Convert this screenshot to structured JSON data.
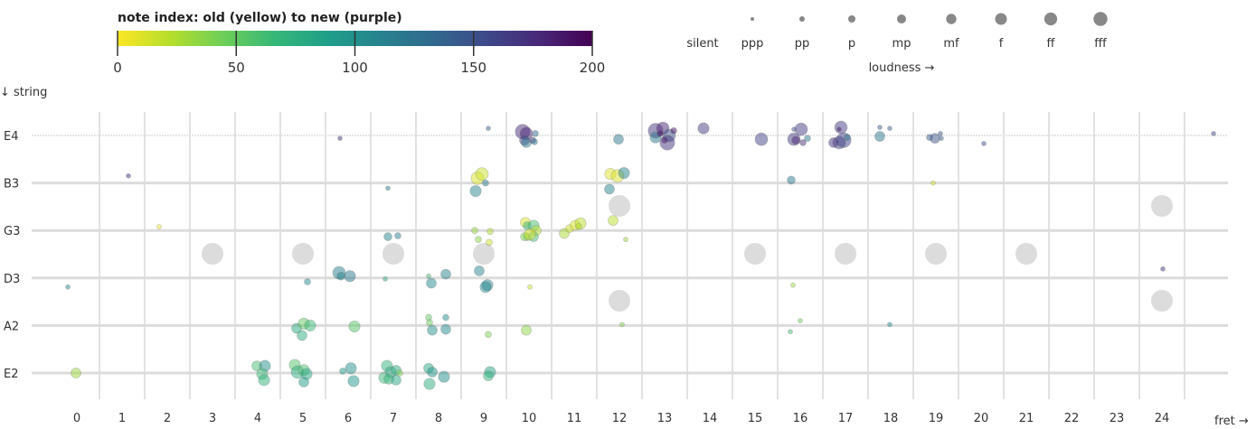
{
  "chart_data": {
    "type": "scatter",
    "colorbar": {
      "title": "note index: old (yellow) to new (purple)",
      "range": [
        0,
        200
      ],
      "ticks": [
        "0",
        "50",
        "100",
        "150",
        "200"
      ],
      "colormap": "viridis",
      "colors": [
        "#fde725",
        "#b5de2b",
        "#6ece58",
        "#35b779",
        "#1f9e89",
        "#26828e",
        "#31688e",
        "#3e4989",
        "#482878",
        "#440154"
      ]
    },
    "loudness_legend": {
      "levels": [
        "silent",
        "ppp",
        "pp",
        "p",
        "mp",
        "mf",
        "f",
        "ff",
        "fff"
      ],
      "title": "loudness →"
    },
    "xlabel": "fret →",
    "ylabel": "↓ string",
    "x_ticks": [
      "0",
      "1",
      "2",
      "3",
      "4",
      "5",
      "6",
      "7",
      "8",
      "9",
      "10",
      "11",
      "12",
      "13",
      "14",
      "15",
      "16",
      "17",
      "18",
      "19",
      "20",
      "21",
      "22",
      "23",
      "24"
    ],
    "strings": [
      "E4",
      "B3",
      "G3",
      "D3",
      "A2",
      "E2"
    ],
    "inlay_frets_single": [
      3,
      5,
      7,
      9,
      15,
      17,
      19,
      21
    ],
    "inlay_frets_double": [
      12,
      24
    ],
    "point_fields": [
      "fret",
      "string",
      "jitter",
      "note_index",
      "loudness"
    ],
    "points": [
      [
        -0.2,
        "D3",
        0.19,
        110,
        "ppp"
      ],
      [
        1.14,
        "B3",
        -0.15,
        175,
        "ppp"
      ],
      [
        1.82,
        "G3",
        -0.08,
        5,
        "ppp"
      ],
      [
        5.82,
        "E4",
        0.06,
        170,
        "ppp"
      ],
      [
        6.88,
        "B3",
        0.11,
        115,
        "ppp"
      ],
      [
        6.88,
        "G3",
        0.13,
        110,
        "p"
      ],
      [
        7.1,
        "G3",
        0.11,
        115,
        "pp"
      ],
      [
        -0.02,
        "E2",
        0,
        30,
        "mp"
      ],
      [
        5.8,
        "D3",
        -0.11,
        115,
        "f"
      ],
      [
        5.84,
        "D3",
        -0.04,
        110,
        "p"
      ],
      [
        6.04,
        "D3",
        -0.04,
        120,
        "mf"
      ],
      [
        5.1,
        "D3",
        0.08,
        105,
        "pp"
      ],
      [
        6.82,
        "D3",
        0.02,
        75,
        "ppp"
      ],
      [
        7.78,
        "D3",
        -0.04,
        60,
        "ppp"
      ],
      [
        7.84,
        "D3",
        0.11,
        105,
        "mp"
      ],
      [
        8.16,
        "D3",
        -0.08,
        110,
        "mp"
      ],
      [
        4.86,
        "A2",
        0.06,
        80,
        "mp"
      ],
      [
        5.02,
        "A2",
        -0.04,
        50,
        "mf"
      ],
      [
        5.16,
        "A2",
        0,
        65,
        "mf"
      ],
      [
        4.98,
        "A2",
        0.21,
        75,
        "mp"
      ],
      [
        6.14,
        "A2",
        0.02,
        55,
        "mf"
      ],
      [
        7.78,
        "A2",
        -0.17,
        50,
        "pp"
      ],
      [
        7.8,
        "A2",
        -0.06,
        45,
        "pp"
      ],
      [
        7.86,
        "A2",
        0.1,
        100,
        "mp"
      ],
      [
        8.16,
        "A2",
        -0.17,
        100,
        "pp"
      ],
      [
        8.16,
        "A2",
        0.08,
        105,
        "mp"
      ],
      [
        3.98,
        "E2",
        -0.15,
        60,
        "mp"
      ],
      [
        4.16,
        "E2",
        -0.15,
        100,
        "mf"
      ],
      [
        4.1,
        "E2",
        0.02,
        65,
        "mf"
      ],
      [
        4.14,
        "E2",
        0.15,
        70,
        "mf"
      ],
      [
        4.82,
        "E2",
        -0.17,
        55,
        "mf"
      ],
      [
        4.88,
        "E2",
        -0.02,
        75,
        "f"
      ],
      [
        5.02,
        "E2",
        -0.06,
        60,
        "mf"
      ],
      [
        5.08,
        "E2",
        0.02,
        80,
        "mf"
      ],
      [
        5.02,
        "E2",
        0.19,
        90,
        "mp"
      ],
      [
        5.88,
        "E2",
        -0.04,
        90,
        "pp"
      ],
      [
        6.06,
        "E2",
        -0.1,
        100,
        "mf"
      ],
      [
        6.12,
        "E2",
        0.17,
        95,
        "mf"
      ],
      [
        6.86,
        "E2",
        -0.15,
        70,
        "mf"
      ],
      [
        6.94,
        "E2",
        -0.02,
        80,
        "mf"
      ],
      [
        7.06,
        "E2",
        -0.06,
        75,
        "mp"
      ],
      [
        6.8,
        "E2",
        0.1,
        65,
        "mf"
      ],
      [
        6.9,
        "E2",
        0.13,
        70,
        "mp"
      ],
      [
        7.06,
        "E2",
        0.15,
        80,
        "mp"
      ],
      [
        7.14,
        "E2",
        0,
        40,
        "pp"
      ],
      [
        7.78,
        "E2",
        -0.1,
        80,
        "mp"
      ],
      [
        7.86,
        "E2",
        -0.02,
        95,
        "mp"
      ],
      [
        7.8,
        "E2",
        0.23,
        75,
        "mf"
      ],
      [
        8.12,
        "E2",
        0.08,
        100,
        "mf"
      ],
      [
        9.14,
        "E2",
        -0.02,
        85,
        "mf"
      ],
      [
        9.1,
        "E2",
        0.06,
        70,
        "mp"
      ],
      [
        8.86,
        "B3",
        -0.1,
        10,
        "f"
      ],
      [
        8.96,
        "B3",
        -0.19,
        15,
        "f"
      ],
      [
        9.04,
        "B3",
        0,
        120,
        "pp"
      ],
      [
        8.82,
        "B3",
        0.17,
        110,
        "mf"
      ],
      [
        9.1,
        "E4",
        -0.15,
        140,
        "ppp"
      ],
      [
        8.8,
        "G3",
        0,
        30,
        "pp"
      ],
      [
        9.14,
        "G3",
        0.02,
        25,
        "pp"
      ],
      [
        8.88,
        "G3",
        0.19,
        35,
        "pp"
      ],
      [
        9.12,
        "G3",
        0.25,
        15,
        "pp"
      ],
      [
        8.9,
        "D3",
        -0.15,
        110,
        "mp"
      ],
      [
        9.08,
        "D3",
        0.15,
        110,
        "mf"
      ],
      [
        9.04,
        "D3",
        0.19,
        105,
        "mf"
      ],
      [
        9.1,
        "A2",
        0.19,
        40,
        "pp"
      ],
      [
        10.02,
        "D3",
        0.19,
        15,
        "ppp"
      ],
      [
        9.86,
        "E4",
        -0.08,
        175,
        "fff"
      ],
      [
        9.94,
        "E4",
        -0.04,
        180,
        "f"
      ],
      [
        9.9,
        "E4",
        0.1,
        160,
        "mp"
      ],
      [
        9.94,
        "E4",
        0.15,
        120,
        "mp"
      ],
      [
        10.14,
        "E4",
        -0.04,
        130,
        "pp"
      ],
      [
        10.08,
        "E4",
        0.1,
        170,
        "pp"
      ],
      [
        10.12,
        "E4",
        0.13,
        120,
        "pp"
      ],
      [
        9.92,
        "G3",
        -0.17,
        10,
        "mp"
      ],
      [
        9.96,
        "G3",
        -0.1,
        70,
        "p"
      ],
      [
        10.1,
        "G3",
        -0.1,
        60,
        "mf"
      ],
      [
        10.16,
        "G3",
        0,
        20,
        "mp"
      ],
      [
        9.96,
        "G3",
        0.13,
        50,
        "p"
      ],
      [
        10.1,
        "G3",
        0.13,
        60,
        "mp"
      ],
      [
        9.9,
        "G3",
        0.13,
        40,
        "p"
      ],
      [
        10.02,
        "G3",
        0.08,
        10,
        "mf"
      ],
      [
        9.94,
        "A2",
        0.1,
        35,
        "mp"
      ],
      [
        10.78,
        "G3",
        0.06,
        25,
        "mp"
      ],
      [
        10.9,
        "G3",
        -0.04,
        15,
        "p"
      ],
      [
        11.02,
        "G3",
        -0.11,
        10,
        "mp"
      ],
      [
        11.14,
        "G3",
        -0.15,
        20,
        "mf"
      ],
      [
        11.1,
        "G3",
        -0.08,
        25,
        "pp"
      ],
      [
        11.8,
        "B3",
        -0.19,
        10,
        "mf"
      ],
      [
        11.96,
        "B3",
        -0.15,
        10,
        "f"
      ],
      [
        12.1,
        "B3",
        -0.21,
        110,
        "mf"
      ],
      [
        11.78,
        "B3",
        0.13,
        110,
        "mp"
      ],
      [
        11.98,
        "E4",
        0.08,
        120,
        "mp"
      ],
      [
        11.86,
        "G3",
        -0.21,
        20,
        "mp"
      ],
      [
        12.14,
        "G3",
        0.19,
        30,
        "ppp"
      ],
      [
        12.06,
        "A2",
        -0.02,
        40,
        "ppp"
      ],
      [
        12.8,
        "E4",
        -0.1,
        170,
        "fff"
      ],
      [
        12.96,
        "E4",
        -0.15,
        180,
        "f"
      ],
      [
        13.1,
        "E4",
        0,
        150,
        "f"
      ],
      [
        13.06,
        "E4",
        0.15,
        170,
        "fff"
      ],
      [
        12.8,
        "E4",
        0.04,
        120,
        "mf"
      ],
      [
        12.9,
        "E4",
        -0.04,
        190,
        "pp"
      ],
      [
        13,
        "E4",
        0.1,
        185,
        "pp"
      ],
      [
        13.2,
        "E4",
        -0.1,
        190,
        "pp"
      ],
      [
        13.86,
        "E4",
        -0.15,
        165,
        "mf"
      ],
      [
        15.14,
        "E4",
        0.08,
        160,
        "f"
      ],
      [
        16.02,
        "E4",
        -0.13,
        165,
        "f"
      ],
      [
        15.86,
        "E4",
        0.08,
        165,
        "f"
      ],
      [
        15.9,
        "E4",
        0.1,
        180,
        "p"
      ],
      [
        16.06,
        "E4",
        0.15,
        175,
        "pp"
      ],
      [
        16.16,
        "E4",
        0.06,
        120,
        "pp"
      ],
      [
        15.86,
        "E4",
        -0.13,
        150,
        "ppp"
      ],
      [
        15.8,
        "B3",
        -0.06,
        120,
        "p"
      ],
      [
        15.84,
        "D3",
        0.15,
        30,
        "ppp"
      ],
      [
        15.78,
        "A2",
        0.13,
        60,
        "ppp"
      ],
      [
        16,
        "A2",
        -0.1,
        45,
        "ppp"
      ],
      [
        16.9,
        "E4",
        -0.17,
        165,
        "f"
      ],
      [
        16.86,
        "E4",
        0.15,
        160,
        "f"
      ],
      [
        16.96,
        "E4",
        0.1,
        160,
        "fff"
      ],
      [
        16.74,
        "E4",
        0.15,
        170,
        "mp"
      ],
      [
        17.04,
        "E4",
        0.04,
        120,
        "pp"
      ],
      [
        16.86,
        "E4",
        -0.13,
        190,
        "ppp"
      ],
      [
        17.76,
        "E4",
        -0.17,
        140,
        "ppp"
      ],
      [
        17.98,
        "E4",
        -0.15,
        140,
        "ppp"
      ],
      [
        17.76,
        "E4",
        0.02,
        120,
        "mp"
      ],
      [
        17.98,
        "A2",
        -0.02,
        100,
        "ppp"
      ],
      [
        18.86,
        "E4",
        0.04,
        140,
        "pp"
      ],
      [
        18.98,
        "E4",
        0.06,
        150,
        "mp"
      ],
      [
        19.1,
        "E4",
        -0.04,
        150,
        "ppp"
      ],
      [
        19.12,
        "E4",
        0.06,
        140,
        "ppp"
      ],
      [
        18.94,
        "B3",
        0,
        10,
        "ppp"
      ],
      [
        20.06,
        "E4",
        0.17,
        150,
        "ppp"
      ],
      [
        24.02,
        "D3",
        -0.19,
        170,
        "ppp"
      ],
      [
        25.14,
        "E4",
        -0.04,
        155,
        "ppp"
      ]
    ]
  }
}
